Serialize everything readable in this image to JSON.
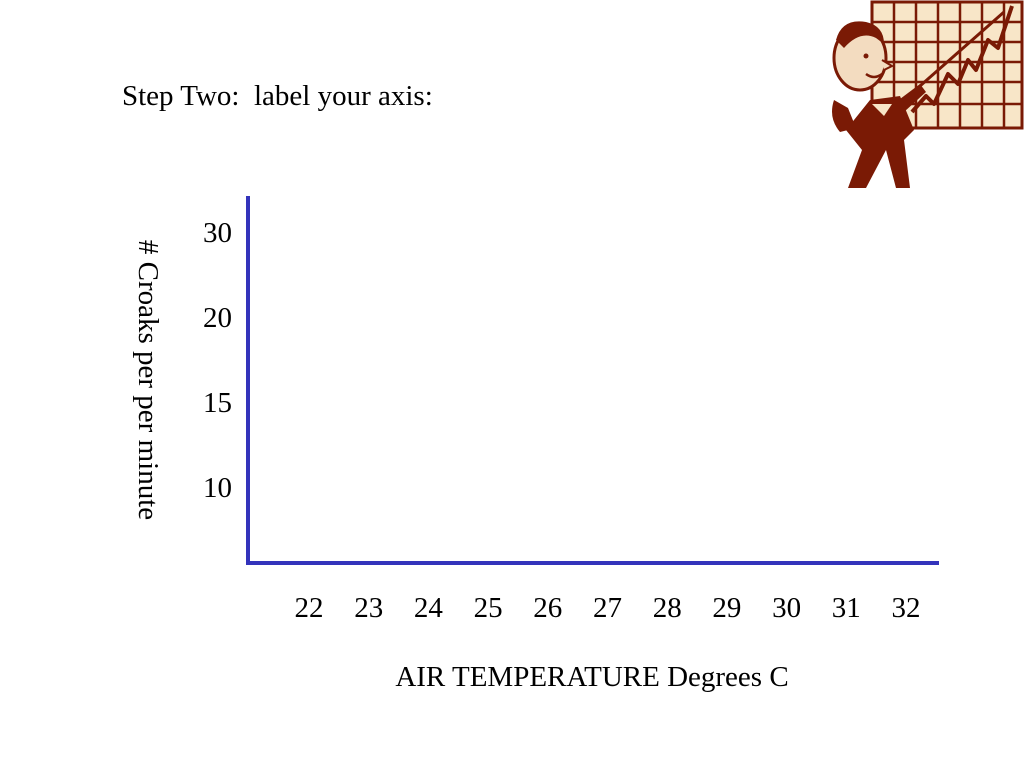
{
  "slide": {
    "title": "Step Two:  label your axis:"
  },
  "clipart": {
    "icon": "presenter-pointing-at-rising-chart-icon",
    "colors": {
      "ink": "#7a1a05",
      "paper": "#f8e6c8",
      "skin": "#f3dcc0"
    }
  },
  "chart_data": {
    "type": "line",
    "title": "",
    "xlabel": "AIR TEMPERATURE Degrees C",
    "ylabel": "# Croaks per per minute",
    "x_ticks": [
      "22",
      "23",
      "24",
      "25",
      "26",
      "27",
      "28",
      "29",
      "30",
      "31",
      "32"
    ],
    "y_ticks": [
      "30",
      "20",
      "15",
      "10"
    ],
    "series": [],
    "grid": false,
    "axis_color": "#3333bb"
  }
}
